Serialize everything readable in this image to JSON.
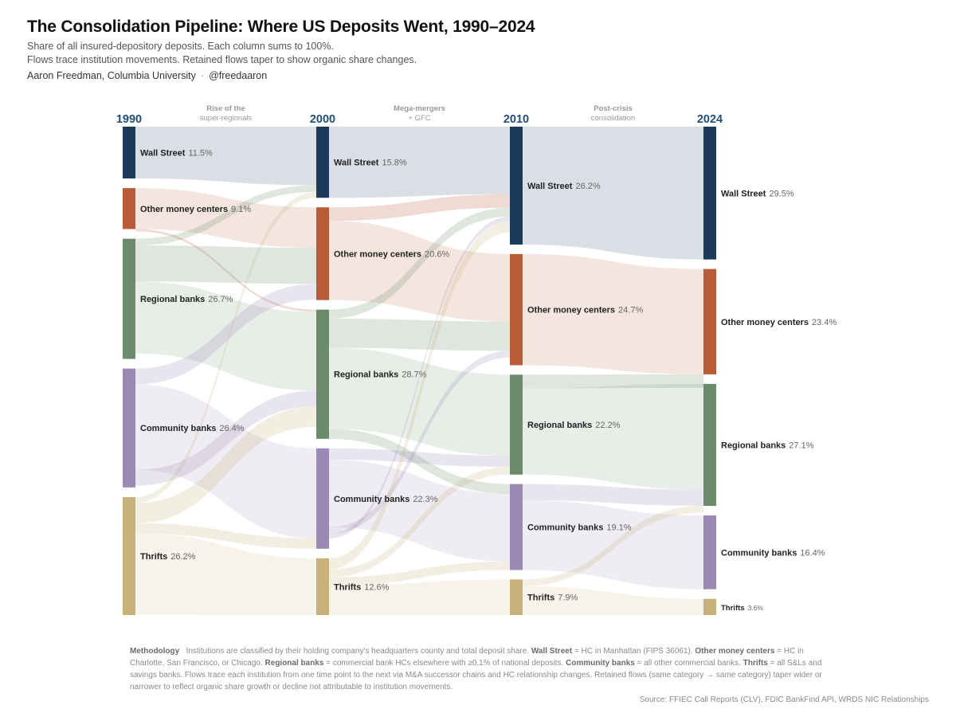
{
  "header": {
    "title": "The Consolidation Pipeline: Where US Deposits Went, 1990–2024",
    "subtitle_1": "Share of all insured-depository deposits. Each column sums to 100%.",
    "subtitle_2": "Flows trace institution movements. Retained flows taper to show organic share changes.",
    "author": "Aaron Freedman, Columbia University",
    "separator": "·",
    "handle": "@freedaaron"
  },
  "chart_data": {
    "type": "sankey",
    "title": "The Consolidation Pipeline: Where US Deposits Went, 1990–2024",
    "unit": "%",
    "years": [
      "1990",
      "2000",
      "2010",
      "2024"
    ],
    "period_labels": [
      [
        "Rise of the",
        "super-regionals"
      ],
      [
        "Mega-mergers",
        "+ GFC"
      ],
      [
        "Post-crisis",
        "consolidation"
      ]
    ],
    "categories": [
      "Wall Street",
      "Other money centers",
      "Regional banks",
      "Community banks",
      "Thrifts"
    ],
    "colors": {
      "Wall Street": "#1b3a5c",
      "Other money centers": "#b85c38",
      "Regional banks": "#6a8c6a",
      "Community banks": "#9a88b5",
      "Thrifts": "#c8b27a"
    },
    "nodes": [
      {
        "year": "1990",
        "category": "Wall Street",
        "value": 11.5,
        "label": "11.5%"
      },
      {
        "year": "1990",
        "category": "Other money centers",
        "value": 9.1,
        "label": "9.1%"
      },
      {
        "year": "1990",
        "category": "Regional banks",
        "value": 26.7,
        "label": "26.7%"
      },
      {
        "year": "1990",
        "category": "Community banks",
        "value": 26.4,
        "label": "26.4%"
      },
      {
        "year": "1990",
        "category": "Thrifts",
        "value": 26.2,
        "label": "26.2%"
      },
      {
        "year": "2000",
        "category": "Wall Street",
        "value": 15.8,
        "label": "15.8%"
      },
      {
        "year": "2000",
        "category": "Other money centers",
        "value": 20.6,
        "label": "20.6%"
      },
      {
        "year": "2000",
        "category": "Regional banks",
        "value": 28.7,
        "label": "28.7%"
      },
      {
        "year": "2000",
        "category": "Community banks",
        "value": 22.3,
        "label": "22.3%"
      },
      {
        "year": "2000",
        "category": "Thrifts",
        "value": 12.6,
        "label": "12.6%"
      },
      {
        "year": "2010",
        "category": "Wall Street",
        "value": 26.2,
        "label": "26.2%"
      },
      {
        "year": "2010",
        "category": "Other money centers",
        "value": 24.7,
        "label": "24.7%"
      },
      {
        "year": "2010",
        "category": "Regional banks",
        "value": 22.2,
        "label": "22.2%"
      },
      {
        "year": "2010",
        "category": "Community banks",
        "value": 19.1,
        "label": "19.1%"
      },
      {
        "year": "2010",
        "category": "Thrifts",
        "value": 7.9,
        "label": "7.9%"
      },
      {
        "year": "2024",
        "category": "Wall Street",
        "value": 29.5,
        "label": "29.5%"
      },
      {
        "year": "2024",
        "category": "Other money centers",
        "value": 23.4,
        "label": "23.4%"
      },
      {
        "year": "2024",
        "category": "Regional banks",
        "value": 27.1,
        "label": "27.1%"
      },
      {
        "year": "2024",
        "category": "Community banks",
        "value": 16.4,
        "label": "16.4%"
      },
      {
        "year": "2024",
        "category": "Thrifts",
        "value": 3.6,
        "label": "3.6%"
      }
    ],
    "links": [
      {
        "from_year": "1990",
        "from": "Wall Street",
        "to": "Wall Street",
        "source_value": 11.5,
        "target_value": 13.0
      },
      {
        "from_year": "1990",
        "from": "Other money centers",
        "to": "Other money centers",
        "source_value": 9.1,
        "target_value": 9.0
      },
      {
        "from_year": "1990",
        "from": "Other money centers",
        "to": "Regional banks",
        "source_value": 0.5,
        "target_value": 0.5
      },
      {
        "from_year": "1990",
        "from": "Regional banks",
        "to": "Wall Street",
        "source_value": 1.5,
        "target_value": 1.5
      },
      {
        "from_year": "1990",
        "from": "Regional banks",
        "to": "Other money centers",
        "source_value": 8.0,
        "target_value": 8.0
      },
      {
        "from_year": "1990",
        "from": "Regional banks",
        "to": "Regional banks",
        "source_value": 16.0,
        "target_value": 17.5
      },
      {
        "from_year": "1990",
        "from": "Community banks",
        "to": "Other money centers",
        "source_value": 3.5,
        "target_value": 3.5
      },
      {
        "from_year": "1990",
        "from": "Community banks",
        "to": "Community banks",
        "source_value": 19.0,
        "target_value": 20.0
      },
      {
        "from_year": "1990",
        "from": "Community banks",
        "to": "Regional banks",
        "source_value": 3.5,
        "target_value": 3.5
      },
      {
        "from_year": "1990",
        "from": "Thrifts",
        "to": "Wall Street",
        "source_value": 1.3,
        "target_value": 1.3
      },
      {
        "from_year": "1990",
        "from": "Thrifts",
        "to": "Regional banks",
        "source_value": 4.5,
        "target_value": 4.5
      },
      {
        "from_year": "1990",
        "from": "Thrifts",
        "to": "Community banks",
        "source_value": 2.3,
        "target_value": 2.3
      },
      {
        "from_year": "1990",
        "from": "Thrifts",
        "to": "Thrifts",
        "source_value": 18.0,
        "target_value": 12.6
      },
      {
        "from_year": "2000",
        "from": "Wall Street",
        "to": "Wall Street",
        "source_value": 15.8,
        "target_value": 15.0
      },
      {
        "from_year": "2000",
        "from": "Other money centers",
        "to": "Wall Street",
        "source_value": 3.0,
        "target_value": 3.0
      },
      {
        "from_year": "2000",
        "from": "Other money centers",
        "to": "Other money centers",
        "source_value": 17.6,
        "target_value": 15.0
      },
      {
        "from_year": "2000",
        "from": "Regional banks",
        "to": "Wall Street",
        "source_value": 2.0,
        "target_value": 2.0
      },
      {
        "from_year": "2000",
        "from": "Regional banks",
        "to": "Other money centers",
        "source_value": 6.5,
        "target_value": 6.5
      },
      {
        "from_year": "2000",
        "from": "Regional banks",
        "to": "Regional banks",
        "source_value": 18.0,
        "target_value": 18.0
      },
      {
        "from_year": "2000",
        "from": "Regional banks",
        "to": "Community banks",
        "source_value": 2.2,
        "target_value": 2.2
      },
      {
        "from_year": "2000",
        "from": "Community banks",
        "to": "Regional banks",
        "source_value": 2.5,
        "target_value": 2.5
      },
      {
        "from_year": "2000",
        "from": "Community banks",
        "to": "Community banks",
        "source_value": 15.0,
        "target_value": 15.0
      },
      {
        "from_year": "2000",
        "from": "Community banks",
        "to": "Other money centers",
        "source_value": 1.5,
        "target_value": 1.5
      },
      {
        "from_year": "2000",
        "from": "Community banks",
        "to": "Wall Street",
        "source_value": 1.0,
        "target_value": 1.0
      },
      {
        "from_year": "2000",
        "from": "Thrifts",
        "to": "Wall Street",
        "source_value": 2.5,
        "target_value": 2.5
      },
      {
        "from_year": "2000",
        "from": "Thrifts",
        "to": "Regional banks",
        "source_value": 1.7,
        "target_value": 1.7
      },
      {
        "from_year": "2000",
        "from": "Thrifts",
        "to": "Community banks",
        "source_value": 1.9,
        "target_value": 1.9
      },
      {
        "from_year": "2000",
        "from": "Thrifts",
        "to": "Thrifts",
        "source_value": 6.5,
        "target_value": 7.9
      },
      {
        "from_year": "2010",
        "from": "Wall Street",
        "to": "Wall Street",
        "source_value": 26.2,
        "target_value": 29.5
      },
      {
        "from_year": "2010",
        "from": "Other money centers",
        "to": "Other money centers",
        "source_value": 24.7,
        "target_value": 23.4
      },
      {
        "from_year": "2010",
        "from": "Regional banks",
        "to": "Other money centers",
        "source_value": 3.0,
        "target_value": 3.0
      },
      {
        "from_year": "2010",
        "from": "Regional banks",
        "to": "Regional banks",
        "source_value": 19.2,
        "target_value": 23.5
      },
      {
        "from_year": "2010",
        "from": "Community banks",
        "to": "Regional banks",
        "source_value": 3.6,
        "target_value": 3.6
      },
      {
        "from_year": "2010",
        "from": "Community banks",
        "to": "Community banks",
        "source_value": 15.5,
        "target_value": 16.4
      },
      {
        "from_year": "2010",
        "from": "Thrifts",
        "to": "Regional banks",
        "source_value": 1.5,
        "target_value": 1.5
      },
      {
        "from_year": "2010",
        "from": "Thrifts",
        "to": "Thrifts",
        "source_value": 6.4,
        "target_value": 3.6
      }
    ]
  },
  "methodology": {
    "heading": "Methodology",
    "p1": "Institutions are classified by their holding company's headquarters county and total deposit share.",
    "ws_term": "Wall Street",
    "ws_def": "= HC in Manhattan (FIPS 36061).",
    "omc_term": "Other money centers",
    "omc_def": "= HC in Charlotte, San Francisco, or Chicago.",
    "rb_term": "Regional banks",
    "rb_def": "= commercial bank HCs elsewhere with ≥0.1% of national deposits.",
    "cb_term": "Community banks",
    "cb_def": "= all other commercial banks.",
    "th_term": "Thrifts",
    "th_def": "= all S&Ls and savings banks. Flows trace each institution from one time point to the next via M&A successor chains and HC relationship changes. Retained flows (same category → same category) taper wider or narrower to reflect organic share growth or decline not attributable to institution movements."
  },
  "source": "Source: FFIEC Call Reports (CLV), FDIC BankFind API, WRDS NIC Relationships"
}
